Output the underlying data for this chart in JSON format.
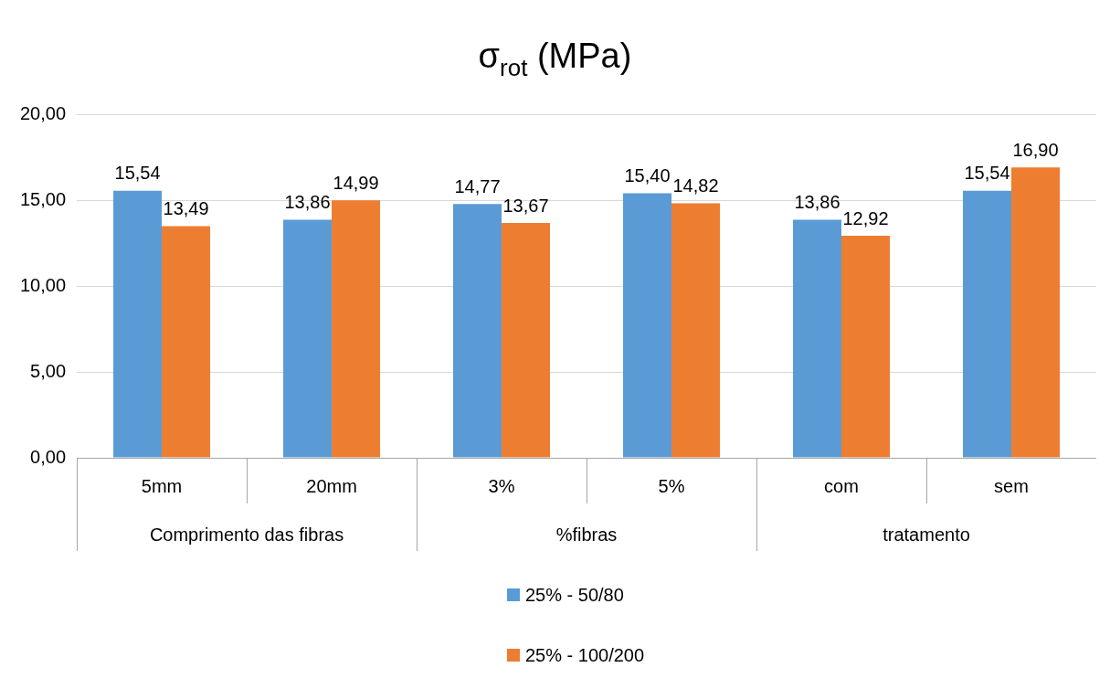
{
  "chart_data": {
    "type": "bar",
    "title": "σ$_{rot}$ (MPa)",
    "categories": [
      "5mm",
      "20mm",
      "3%",
      "5%",
      "com",
      "sem"
    ],
    "annotations": [
      "Comprimento das fibras",
      "%fibras",
      "tratamento"
    ],
    "series": [
      {
        "name": "25% - 50/80",
        "color": "#5b9bd5",
        "values": [
          15.54,
          13.86,
          14.77,
          15.4,
          13.86,
          15.54
        ],
        "value_labels": [
          "15,54",
          "13,86",
          "14,77",
          "15,40",
          "13,86",
          "15,54"
        ]
      },
      {
        "name": "25% - 100/200",
        "color": "#ed7d31",
        "values": [
          13.49,
          14.99,
          13.67,
          14.82,
          12.92,
          16.9
        ],
        "value_labels": [
          "13,49",
          "14,99",
          "13,67",
          "14,82",
          "12,92",
          "16,90"
        ]
      }
    ],
    "ylim": [
      0,
      20
    ],
    "yticks": [
      {
        "value": 0,
        "label": "0,00"
      },
      {
        "value": 5,
        "label": "5,00"
      },
      {
        "value": 10,
        "label": "10,00"
      },
      {
        "value": 15,
        "label": "15,00"
      },
      {
        "value": 20,
        "label": "20,00"
      }
    ],
    "grid": "y",
    "legend": "bottom"
  }
}
